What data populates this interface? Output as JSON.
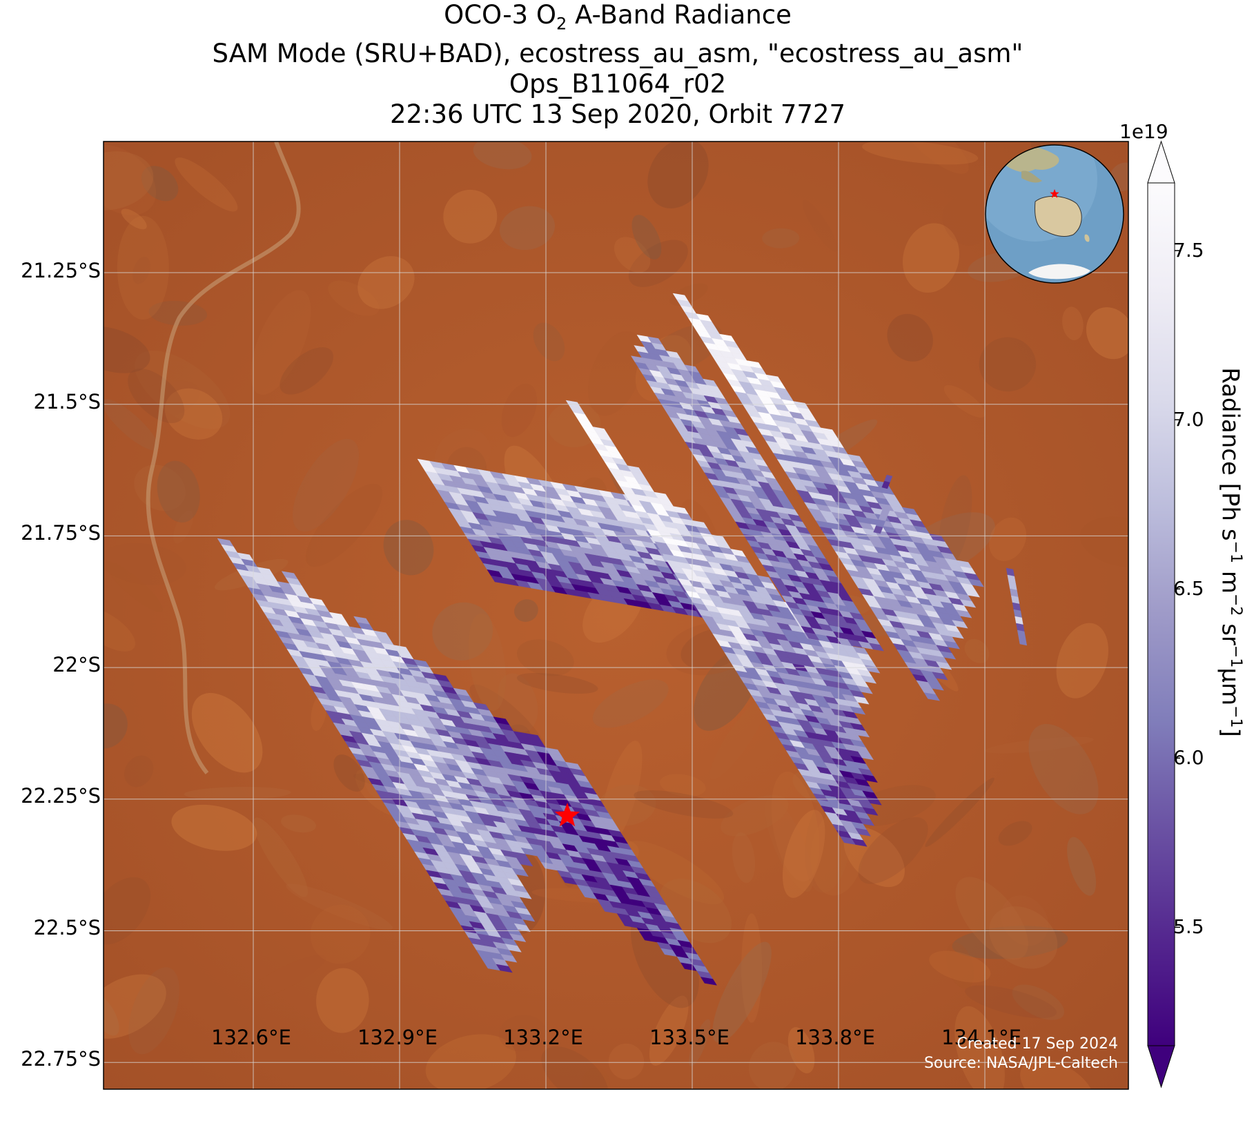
{
  "title": {
    "line1_prefix": "OCO-3 O",
    "line1_sub": "2",
    "line1_suffix": " A-Band Radiance",
    "line2": "SAM Mode (SRU+BAD), ecostress_au_asm, \"ecostress_au_asm\"",
    "line3": "Ops_B11064_r02",
    "line4": "22:36 UTC 13 Sep 2020, Orbit 7727"
  },
  "axes": {
    "lat_labels": [
      "21.25°S",
      "21.5°S",
      "21.75°S",
      "22°S",
      "22.25°S",
      "22.5°S",
      "22.75°S"
    ],
    "lon_labels": [
      "132.6°E",
      "132.9°E",
      "133.2°E",
      "133.5°E",
      "133.8°E",
      "134.1°E"
    ]
  },
  "colorbar": {
    "exponent": "1e19",
    "ticks": [
      "5.5",
      "6.0",
      "6.5",
      "7.0",
      "7.5"
    ],
    "tick_values": [
      5.5,
      6.0,
      6.5,
      7.0,
      7.5
    ],
    "range": [
      5.15,
      7.7
    ],
    "label_prefix": "Radiance [Ph s",
    "label_s_exp": "−1",
    "label_m": " m",
    "label_m_exp": "−2",
    "label_sr": " sr",
    "label_sr_exp": "−1",
    "label_um": "μm",
    "label_um_exp": "−1",
    "label_suffix": "]",
    "colors": [
      "#3f007d",
      "#54278f",
      "#6a51a3",
      "#807dba",
      "#9e9ac8",
      "#bcbddc",
      "#dadaeb",
      "#efedf5",
      "#fcfbfd"
    ]
  },
  "credits": {
    "created": "Created 17 Sep 2024",
    "source": "Source: NASA/JPL-Caltech"
  },
  "target": {
    "name": "ecostress_au_asm",
    "marker_color": "#ff0000"
  },
  "colors": {
    "land": "#b5592a",
    "land_dark": "#8a4a2a",
    "ocean_globe": "#6e9fc6",
    "grid": "#d8d8d8"
  }
}
